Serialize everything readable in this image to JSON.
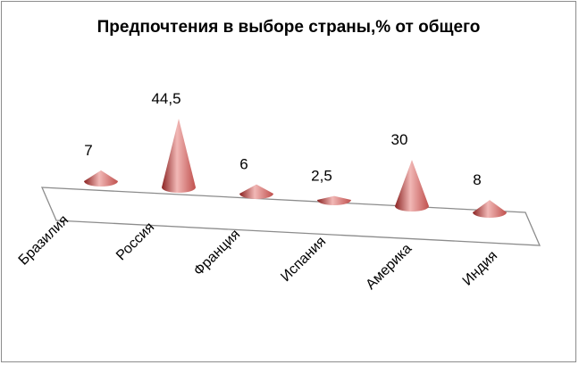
{
  "chart_data": {
    "type": "bar",
    "subtype": "3d-cone",
    "title": "Предпочтения в выборе страны,% от общего",
    "categories": [
      "Бразилия",
      "Россия",
      "Франция",
      "Испания",
      "Америка",
      "Индия"
    ],
    "values": [
      7,
      44.5,
      6,
      2.5,
      30,
      8
    ],
    "data_labels": [
      "7",
      "44,5",
      "6",
      "2,5",
      "30",
      "8"
    ],
    "xlabel": "",
    "ylabel": "",
    "ylim": [
      0,
      44.5
    ],
    "grid": false,
    "legend": "none",
    "colors": {
      "cone": "#c0504d",
      "cone_dark": "#8b2322",
      "cone_light": "#f1b8b6"
    }
  }
}
